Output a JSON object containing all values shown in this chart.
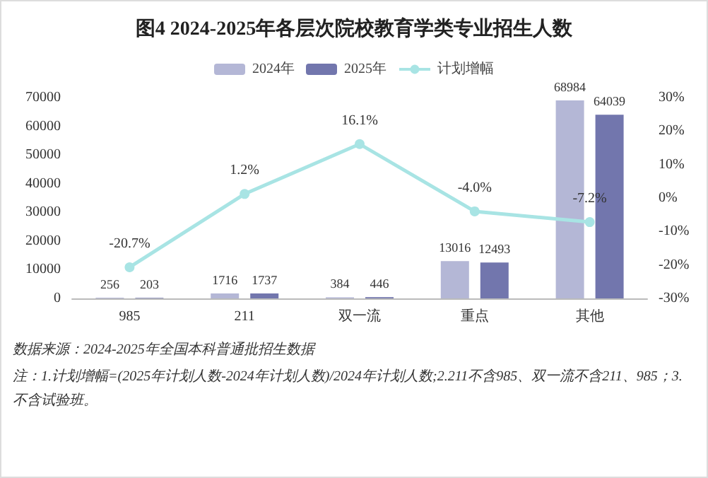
{
  "chart_data": {
    "type": "bar",
    "title": "图4 2024-2025年各层次院校教育学类专业招生人数",
    "categories": [
      "985",
      "211",
      "双一流",
      "重点",
      "其他"
    ],
    "series": [
      {
        "name": "2024年",
        "color": "#b4b7d6",
        "values": [
          256,
          1716,
          384,
          13016,
          68984
        ],
        "value_labels": [
          "256",
          "1716",
          "384",
          "13016",
          "68984"
        ]
      },
      {
        "name": "2025年",
        "color": "#7276ad",
        "values": [
          203,
          1737,
          446,
          12493,
          64039
        ],
        "value_labels": [
          "203",
          "1737",
          "446",
          "12493",
          "64039"
        ]
      },
      {
        "name": "计划增幅",
        "type": "line",
        "axis": "y2",
        "color": "#a8e4e4",
        "values": [
          -20.7,
          1.2,
          16.1,
          -4.0,
          -7.2
        ],
        "value_labels": [
          "-20.7%",
          "1.2%",
          "16.1%",
          "-4.0%",
          "-7.2%"
        ]
      }
    ],
    "ylim": [
      0,
      70000
    ],
    "yticks": [
      0,
      10000,
      20000,
      30000,
      40000,
      50000,
      60000,
      70000
    ],
    "y2lim": [
      -30,
      30
    ],
    "y2ticks": [
      {
        "value": -30,
        "label": "-30%"
      },
      {
        "value": -20,
        "label": "-20%"
      },
      {
        "value": -10,
        "label": "-10%"
      },
      {
        "value": 0,
        "label": "0%"
      },
      {
        "value": 10,
        "label": "10%"
      },
      {
        "value": 20,
        "label": "20%"
      },
      {
        "value": 30,
        "label": "30%"
      }
    ],
    "grid": false,
    "legend": "top",
    "marker": "circle",
    "annotations": [
      "数据来源：2024-2025年全国本科普通批招生数据",
      "注：1.计划增幅=(2025年计划人数-2024年计划人数)/2024年计划人数;2.211不含985、双一流不含211、985；3.不含试验班。"
    ]
  }
}
